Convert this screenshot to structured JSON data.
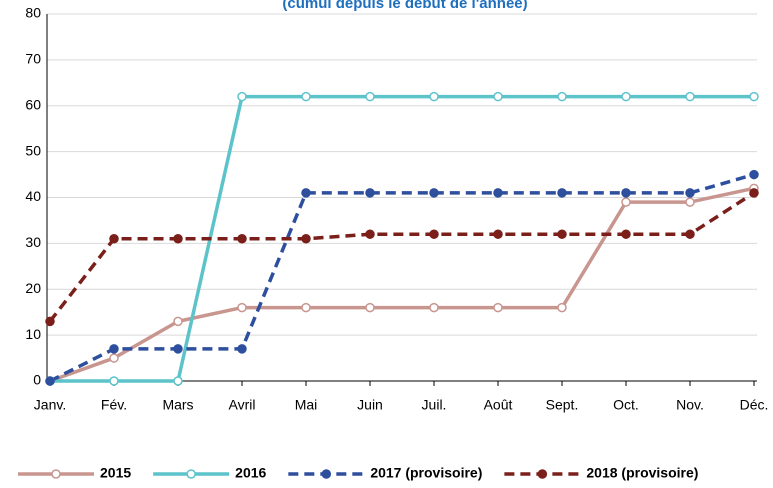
{
  "chart_data": {
    "type": "line",
    "subtitle": "(cumul depuis le début de l'année)",
    "categories": [
      "Janv.",
      "Fév.",
      "Mars",
      "Avril",
      "Mai",
      "Juin",
      "Juil.",
      "Août",
      "Sept.",
      "Oct.",
      "Nov.",
      "Déc."
    ],
    "series": [
      {
        "name": "2015",
        "color": "#c8958f",
        "dashed": false,
        "marker": "open",
        "values": [
          0,
          5,
          13,
          16,
          16,
          16,
          16,
          16,
          16,
          39,
          39,
          42
        ]
      },
      {
        "name": "2016",
        "color": "#5cc3cb",
        "dashed": false,
        "marker": "open",
        "values": [
          0,
          0,
          0,
          62,
          62,
          62,
          62,
          62,
          62,
          62,
          62,
          62
        ]
      },
      {
        "name": "2017 (provisoire)",
        "color": "#2d4f9e",
        "dashed": true,
        "marker": "filled",
        "values": [
          0,
          7,
          7,
          7,
          41,
          41,
          41,
          41,
          41,
          41,
          41,
          45
        ]
      },
      {
        "name": "2018 (provisoire)",
        "color": "#7b1f1a",
        "dashed": true,
        "marker": "filled",
        "values": [
          13,
          31,
          31,
          31,
          31,
          32,
          32,
          32,
          32,
          32,
          32,
          41
        ]
      }
    ],
    "ylim": [
      0,
      80
    ],
    "yticks": [
      0,
      10,
      20,
      30,
      40,
      50,
      60,
      70,
      80
    ],
    "grid": true
  }
}
